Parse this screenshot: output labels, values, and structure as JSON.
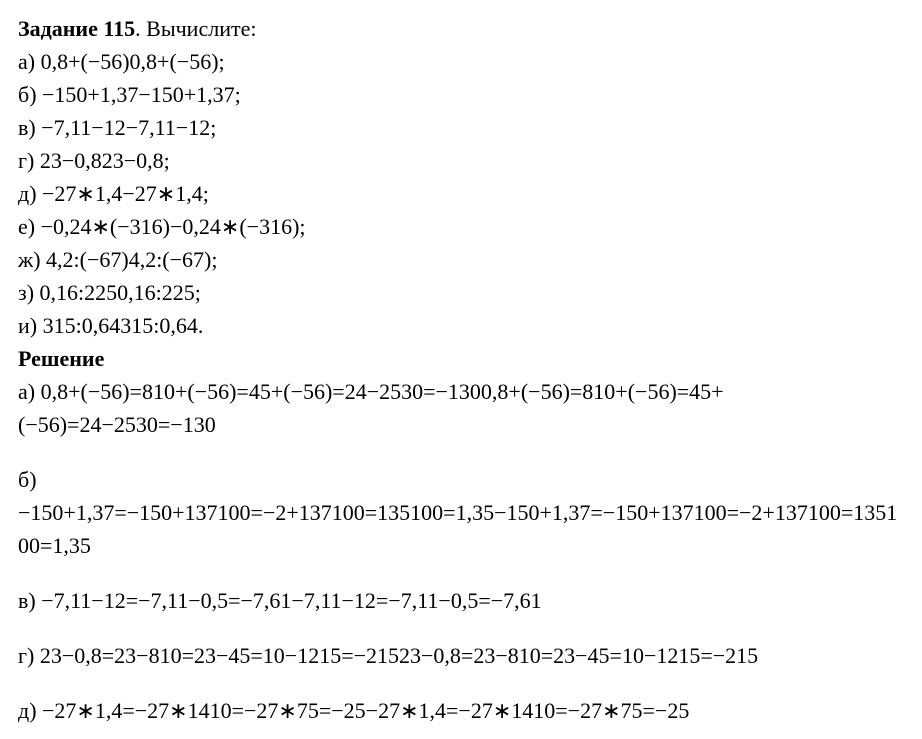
{
  "task": {
    "number_label": "Задание 115",
    "prompt": ". Вычислите:"
  },
  "problems": [
    "а) 0,8+(−56)0,8+(−56);",
    "б) −150+1,37−150+1,37;",
    "в) −7,11−12−7,11−12;",
    "г) 23−0,823−0,8;",
    "д) −27∗1,4−27∗1,4;",
    "е) −0,24∗(−316)−0,24∗(−316);",
    "ж) 4,2:(−67)4,2:(−67);",
    "з) 0,16:2250,16:225;",
    "и) 315:0,64315:0,64."
  ],
  "solution_heading": "Решение",
  "solutions": [
    "а) 0,8+(−56)=810+(−56)=45+(−56)=24−2530=−1300,8+(−56)=810+(−56)=45+(−56)=24−2530=−130",
    "б) −150+1,37=−150+137100=−2+137100=135100=1,35−150+1,37=−150+137100=−2+137100=135100=1,35",
    "в) −7,11−12=−7,11−0,5=−7,61−7,11−12=−7,11−0,5=−7,61",
    "г) 23−0,8=23−810=23−45=10−1215=−21523−0,8=23−810=23−45=10−1215=−215",
    "д) −27∗1,4=−27∗1410=−27∗75=−25−27∗1,4=−27∗1410=−27∗75=−25"
  ]
}
